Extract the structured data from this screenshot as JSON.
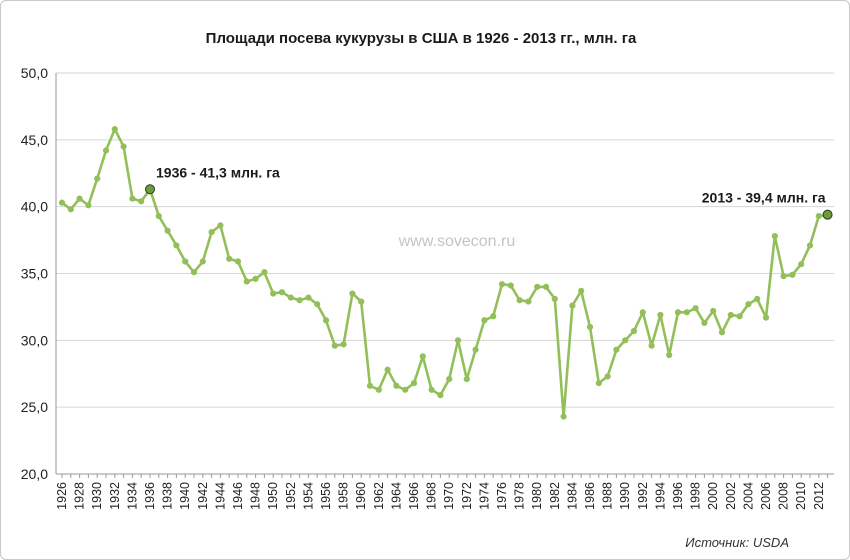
{
  "chart_data": {
    "type": "line",
    "title": "Площади посева кукурузы в США в 1926 - 2013 гг., млн. га",
    "xlabel": "",
    "ylabel": "",
    "ylim": [
      20,
      50
    ],
    "y_ticks": [
      "20,0",
      "25,0",
      "30,0",
      "35,0",
      "40,0",
      "45,0",
      "50,0"
    ],
    "x_range": [
      1926,
      2013
    ],
    "x_tick_labels": [
      "1926",
      "1928",
      "1930",
      "1932",
      "1934",
      "1936",
      "1938",
      "1940",
      "1942",
      "1944",
      "1946",
      "1948",
      "1950",
      "1952",
      "1954",
      "1956",
      "1958",
      "1960",
      "1962",
      "1964",
      "1966",
      "1968",
      "1970",
      "1972",
      "1974",
      "1976",
      "1978",
      "1980",
      "1982",
      "1984",
      "1986",
      "1988",
      "1990",
      "1992",
      "1994",
      "1996",
      "1998",
      "2000",
      "2002",
      "2004",
      "2006",
      "2008",
      "2010",
      "2012"
    ],
    "grid": "horizontal",
    "legend": "none",
    "series_color": "#93bf5a",
    "highlight_color": "#6e9a3c",
    "x": [
      1926,
      1927,
      1928,
      1929,
      1930,
      1931,
      1932,
      1933,
      1934,
      1935,
      1936,
      1937,
      1938,
      1939,
      1940,
      1941,
      1942,
      1943,
      1944,
      1945,
      1946,
      1947,
      1948,
      1949,
      1950,
      1951,
      1952,
      1953,
      1954,
      1955,
      1956,
      1957,
      1958,
      1959,
      1960,
      1961,
      1962,
      1963,
      1964,
      1965,
      1966,
      1967,
      1968,
      1969,
      1970,
      1971,
      1972,
      1973,
      1974,
      1975,
      1976,
      1977,
      1978,
      1979,
      1980,
      1981,
      1982,
      1983,
      1984,
      1985,
      1986,
      1987,
      1988,
      1989,
      1990,
      1991,
      1992,
      1993,
      1994,
      1995,
      1996,
      1997,
      1998,
      1999,
      2000,
      2001,
      2002,
      2003,
      2004,
      2005,
      2006,
      2007,
      2008,
      2009,
      2010,
      2011,
      2012,
      2013
    ],
    "values": [
      40.3,
      39.8,
      40.6,
      40.1,
      42.1,
      44.2,
      45.8,
      44.5,
      40.6,
      40.4,
      41.3,
      39.3,
      38.2,
      37.1,
      35.9,
      35.1,
      35.9,
      38.1,
      38.6,
      36.1,
      35.9,
      34.4,
      34.6,
      35.1,
      33.5,
      33.6,
      33.2,
      33.0,
      33.2,
      32.7,
      31.5,
      29.6,
      29.7,
      33.5,
      32.9,
      26.6,
      26.3,
      27.8,
      26.6,
      26.3,
      26.8,
      28.8,
      26.3,
      25.9,
      27.1,
      30.0,
      27.1,
      29.3,
      31.5,
      31.8,
      34.2,
      34.1,
      33.0,
      32.9,
      34.0,
      34.0,
      33.1,
      24.3,
      32.6,
      33.7,
      31.0,
      26.8,
      27.3,
      29.3,
      30.0,
      30.7,
      32.1,
      29.6,
      31.9,
      28.9,
      32.1,
      32.1,
      32.4,
      31.3,
      32.2,
      30.6,
      31.9,
      31.8,
      32.7,
      33.1,
      31.7,
      37.8,
      34.8,
      34.9,
      35.7,
      37.1,
      39.3,
      39.4
    ],
    "highlights": [
      {
        "x": 1936,
        "y": 41.3,
        "label": "1936 - 41,3 млн. га"
      },
      {
        "x": 2013,
        "y": 39.4,
        "label": "2013 - 39,4 млн. га"
      }
    ],
    "watermark": "www.sovecon.ru",
    "source": "Источник: USDA"
  }
}
